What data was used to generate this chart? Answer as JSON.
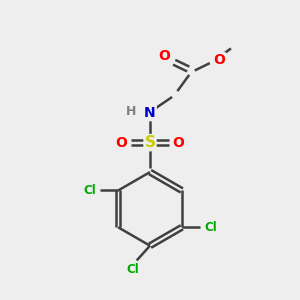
{
  "background_color": "#eeeeee",
  "atom_colors": {
    "C": "#404040",
    "H": "#808080",
    "N": "#0000cc",
    "O": "#ff0000",
    "S": "#cccc00",
    "Cl": "#00aa00"
  },
  "bond_color": "#404040",
  "figsize": [
    3.0,
    3.0
  ],
  "dpi": 100,
  "xlim": [
    0,
    10
  ],
  "ylim": [
    0,
    10
  ]
}
